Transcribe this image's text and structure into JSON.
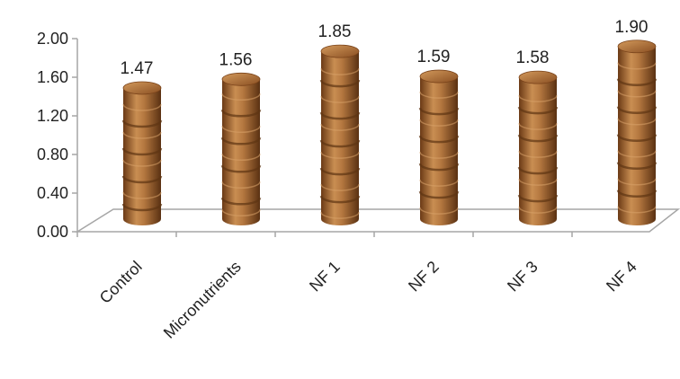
{
  "chart_data": {
    "type": "bar",
    "style": "3d-cylinder",
    "categories": [
      "Control",
      "Micronutrients",
      "NF 1",
      "NF 2",
      "NF 3",
      "NF 4"
    ],
    "values": [
      1.47,
      1.56,
      1.85,
      1.59,
      1.58,
      1.9
    ],
    "data_labels": [
      "1.47",
      "1.56",
      "1.85",
      "1.59",
      "1.58",
      "1.90"
    ],
    "ylim": [
      0,
      2.0
    ],
    "yticks": [
      0.0,
      0.4,
      0.8,
      1.2,
      1.6,
      2.0
    ],
    "ytick_labels": [
      "0.00",
      "0.40",
      "0.80",
      "1.20",
      "1.60",
      "2.00"
    ],
    "gridlines": false,
    "legend": "none",
    "title": "",
    "xlabel": "",
    "ylabel": "",
    "colors": {
      "bar_base": "#a0612a",
      "bar_dark": "#5e3413",
      "bar_light": "#d8a36a",
      "axis": "#a6a6a6"
    }
  }
}
